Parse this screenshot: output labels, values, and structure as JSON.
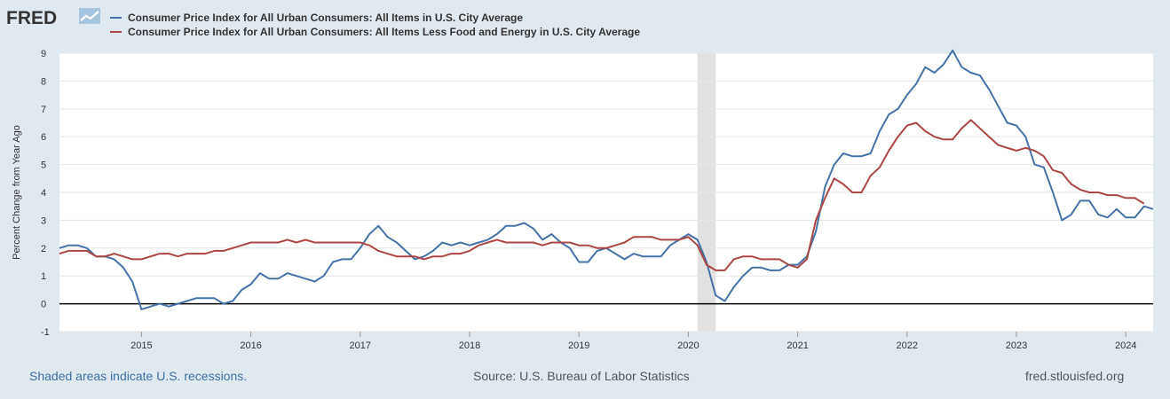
{
  "header": {
    "logo_text": "FRED"
  },
  "footer": {
    "recession_note": "Shaded areas indicate U.S. recessions.",
    "source": "Source: U.S. Bureau of Labor Statistics",
    "site": "fred.stlouisfed.org"
  },
  "colors": {
    "series_cpi": "#4572a7",
    "series_core": "#aa4643",
    "recession": "#e1e1e1",
    "background": "#e1e9f0"
  },
  "chart_data": {
    "type": "line",
    "title": "",
    "xlabel": "",
    "ylabel": "Percent Change from Year Ago",
    "x_start": "2014-04",
    "x_end": "2024-04",
    "ylim": [
      -1,
      9
    ],
    "yticks": [
      -1,
      0,
      1,
      2,
      3,
      4,
      5,
      6,
      7,
      8,
      9
    ],
    "xticks": [
      "2015",
      "2016",
      "2017",
      "2018",
      "2019",
      "2020",
      "2021",
      "2022",
      "2023",
      "2024"
    ],
    "grid": true,
    "legend_position": "top",
    "recessions": [
      {
        "start": "2020-02",
        "end": "2020-04"
      }
    ],
    "series": [
      {
        "name": "Consumer Price Index for All Urban Consumers: All Items in U.S. City Average",
        "color": "#4572a7",
        "values": [
          2.0,
          2.1,
          2.1,
          2.0,
          1.7,
          1.7,
          1.6,
          1.3,
          0.8,
          -0.2,
          -0.1,
          0.0,
          -0.1,
          0.0,
          0.1,
          0.2,
          0.2,
          0.2,
          0.0,
          0.1,
          0.5,
          0.7,
          1.1,
          0.9,
          0.9,
          1.1,
          1.0,
          0.9,
          0.8,
          1.0,
          1.5,
          1.6,
          1.6,
          2.0,
          2.5,
          2.8,
          2.4,
          2.2,
          1.9,
          1.6,
          1.7,
          1.9,
          2.2,
          2.1,
          2.2,
          2.1,
          2.2,
          2.3,
          2.5,
          2.8,
          2.8,
          2.9,
          2.7,
          2.3,
          2.5,
          2.2,
          2.0,
          1.5,
          1.5,
          1.9,
          2.0,
          1.8,
          1.6,
          1.8,
          1.7,
          1.7,
          1.7,
          2.1,
          2.3,
          2.5,
          2.3,
          1.5,
          0.3,
          0.1,
          0.6,
          1.0,
          1.3,
          1.3,
          1.2,
          1.2,
          1.4,
          1.4,
          1.7,
          2.6,
          4.2,
          5.0,
          5.4,
          5.3,
          5.3,
          5.4,
          6.2,
          6.8,
          7.0,
          7.5,
          7.9,
          8.5,
          8.3,
          8.6,
          9.1,
          8.5,
          8.3,
          8.2,
          7.7,
          7.1,
          6.5,
          6.4,
          6.0,
          5.0,
          4.9,
          4.0,
          3.0,
          3.2,
          3.7,
          3.7,
          3.2,
          3.1,
          3.4,
          3.1,
          3.1,
          3.5,
          3.4
        ]
      },
      {
        "name": "Consumer Price Index for All Urban Consumers: All Items Less Food and Energy in U.S. City Average",
        "color": "#aa4643",
        "values": [
          1.8,
          1.9,
          1.9,
          1.9,
          1.7,
          1.7,
          1.8,
          1.7,
          1.6,
          1.6,
          1.7,
          1.8,
          1.8,
          1.7,
          1.8,
          1.8,
          1.8,
          1.9,
          1.9,
          2.0,
          2.1,
          2.2,
          2.2,
          2.2,
          2.2,
          2.3,
          2.2,
          2.3,
          2.2,
          2.2,
          2.2,
          2.2,
          2.2,
          2.2,
          2.1,
          1.9,
          1.8,
          1.7,
          1.7,
          1.7,
          1.6,
          1.7,
          1.7,
          1.8,
          1.8,
          1.9,
          2.1,
          2.2,
          2.3,
          2.2,
          2.2,
          2.2,
          2.2,
          2.1,
          2.2,
          2.2,
          2.2,
          2.1,
          2.1,
          2.0,
          2.0,
          2.1,
          2.2,
          2.4,
          2.4,
          2.4,
          2.3,
          2.3,
          2.3,
          2.4,
          2.1,
          1.4,
          1.2,
          1.2,
          1.6,
          1.7,
          1.7,
          1.6,
          1.6,
          1.6,
          1.4,
          1.3,
          1.6,
          3.0,
          3.8,
          4.5,
          4.3,
          4.0,
          4.0,
          4.6,
          4.9,
          5.5,
          6.0,
          6.4,
          6.5,
          6.2,
          6.0,
          5.9,
          5.9,
          6.3,
          6.6,
          6.3,
          6.0,
          5.7,
          5.6,
          5.5,
          5.6,
          5.5,
          5.3,
          4.8,
          4.7,
          4.3,
          4.1,
          4.0,
          4.0,
          3.9,
          3.9,
          3.8,
          3.8,
          3.6
        ]
      }
    ]
  }
}
